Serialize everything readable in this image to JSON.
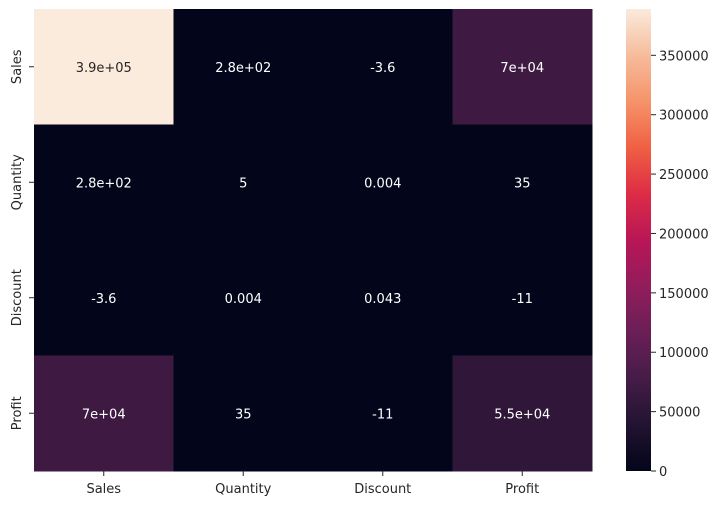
{
  "chart_data": {
    "type": "heatmap",
    "title": "",
    "xlabel": "",
    "ylabel": "",
    "x_categories": [
      "Sales",
      "Quantity",
      "Discount",
      "Profit"
    ],
    "y_categories": [
      "Sales",
      "Quantity",
      "Discount",
      "Profit"
    ],
    "values": [
      [
        389000,
        280,
        -3.6,
        70000
      ],
      [
        280,
        5,
        0.004,
        35
      ],
      [
        -3.6,
        0.004,
        0.043,
        -11
      ],
      [
        70000,
        35,
        -11,
        55000
      ]
    ],
    "annotations": [
      [
        "3.9e+05",
        "2.8e+02",
        "-3.6",
        "7e+04"
      ],
      [
        "2.8e+02",
        "5",
        "0.004",
        "35"
      ],
      [
        "-3.6",
        "0.004",
        "0.043",
        "-11"
      ],
      [
        "7e+04",
        "35",
        "-11",
        "5.5e+04"
      ]
    ],
    "colorbar": {
      "vmin": 0,
      "vmax": 389000,
      "ticks": [
        0,
        50000,
        100000,
        150000,
        200000,
        250000,
        300000,
        350000
      ],
      "tick_labels": [
        "0",
        "50000",
        "100000",
        "150000",
        "200000",
        "250000",
        "300000",
        "350000"
      ]
    },
    "colormap": "rocket",
    "colormap_stops": [
      "#03051a",
      "#221331",
      "#451c47",
      "#6a1f56",
      "#921c5b",
      "#b91657",
      "#dd2c45",
      "#f06043",
      "#f5936a",
      "#f6bc9c",
      "#faebdd"
    ]
  }
}
